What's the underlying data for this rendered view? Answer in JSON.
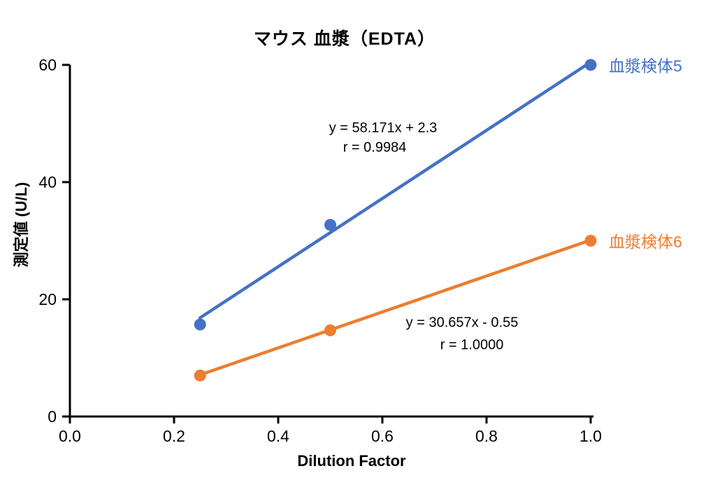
{
  "chart_data": {
    "type": "scatter",
    "title": "マウス 血漿（EDTA）",
    "xlabel": "Dilution Factor",
    "ylabel": "測定値 (U/L)",
    "xlim": [
      0.0,
      1.0
    ],
    "ylim": [
      0,
      60
    ],
    "x_ticks": [
      "0.0",
      "0.2",
      "0.4",
      "0.6",
      "0.8",
      "1.0"
    ],
    "y_ticks": [
      "0",
      "20",
      "40",
      "60"
    ],
    "grid": false,
    "axis_color": "#000000",
    "legend_position": "right-of-last-point",
    "series": [
      {
        "name": "血漿検体5",
        "color": "#4472C4",
        "marker": "circle",
        "x": [
          0.25,
          0.5,
          1.0
        ],
        "y": [
          15.7,
          32.7,
          60.0
        ],
        "trendline": {
          "slope": 58.171,
          "intercept": 2.3,
          "x_range": [
            0.25,
            1.0
          ]
        },
        "equation_label": "y = 58.171x + 2.3",
        "r_label": "r = 0.9984"
      },
      {
        "name": "血漿検体6",
        "color": "#ED7D31",
        "marker": "circle",
        "x": [
          0.25,
          0.5,
          1.0
        ],
        "y": [
          7.0,
          14.7,
          30.0
        ],
        "trendline": {
          "slope": 30.657,
          "intercept": -0.55,
          "x_range": [
            0.25,
            1.0
          ]
        },
        "equation_label": "y = 30.657x - 0.55",
        "r_label": "r = 1.0000"
      }
    ]
  }
}
